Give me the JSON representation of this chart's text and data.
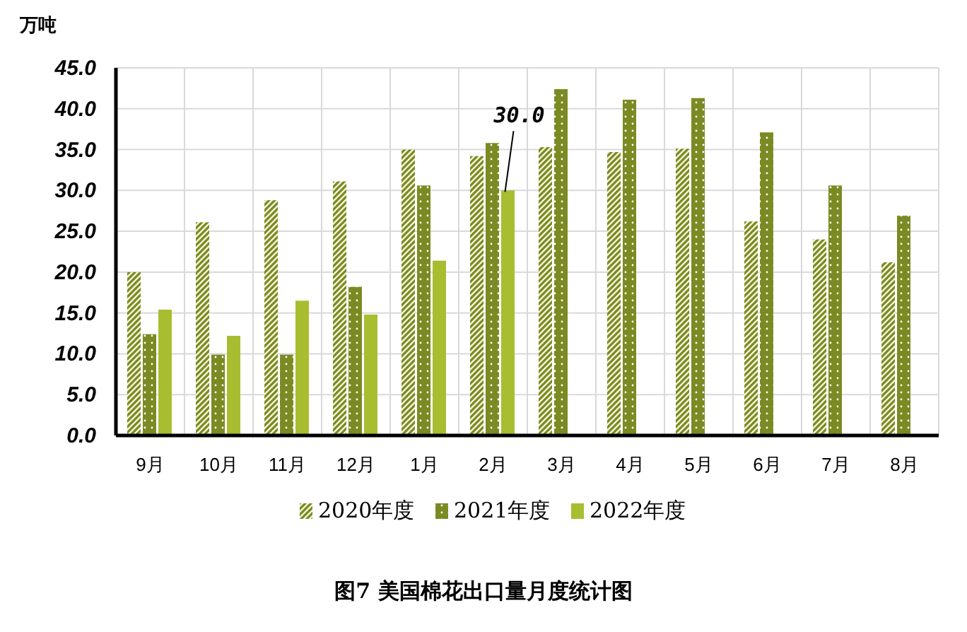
{
  "chart_data": {
    "type": "bar",
    "title": "图7   美国棉花出口量月度统计图",
    "ylabel": "万吨",
    "categories": [
      "9月",
      "10月",
      "11月",
      "12月",
      "1月",
      "2月",
      "3月",
      "4月",
      "5月",
      "6月",
      "7月",
      "8月"
    ],
    "series": [
      {
        "name": "2020年度",
        "color": "#7a8a1e",
        "values": [
          20.0,
          26.1,
          28.8,
          31.1,
          35.0,
          34.2,
          35.3,
          34.7,
          35.1,
          26.2,
          24.0,
          21.2
        ]
      },
      {
        "name": "2021年度",
        "color": "#7b8a22",
        "values": [
          12.4,
          9.9,
          9.9,
          18.2,
          30.6,
          35.8,
          42.4,
          41.1,
          41.3,
          37.1,
          30.6,
          26.9
        ]
      },
      {
        "name": "2022年度",
        "color": "#a9bd31",
        "values": [
          15.4,
          12.2,
          16.5,
          14.8,
          21.4,
          30.0,
          null,
          null,
          null,
          null,
          null,
          null
        ],
        "value_labels": [
          null,
          null,
          null,
          null,
          null,
          "30.0",
          null,
          null,
          null,
          null,
          null,
          null
        ]
      }
    ],
    "ylim": [
      0,
      45
    ],
    "yticks": [
      {
        "value": 0,
        "label": "0.0"
      },
      {
        "value": 5,
        "label": "5.0"
      },
      {
        "value": 10,
        "label": "10.0"
      },
      {
        "value": 15,
        "label": "15.0"
      },
      {
        "value": 20,
        "label": "20.0"
      },
      {
        "value": 25,
        "label": "25.0"
      },
      {
        "value": 30,
        "label": "30.0"
      },
      {
        "value": 35,
        "label": "35.0"
      },
      {
        "value": 40,
        "label": "40.0"
      },
      {
        "value": 45,
        "label": "45.0"
      }
    ],
    "grid": true,
    "legend": "bottom"
  }
}
